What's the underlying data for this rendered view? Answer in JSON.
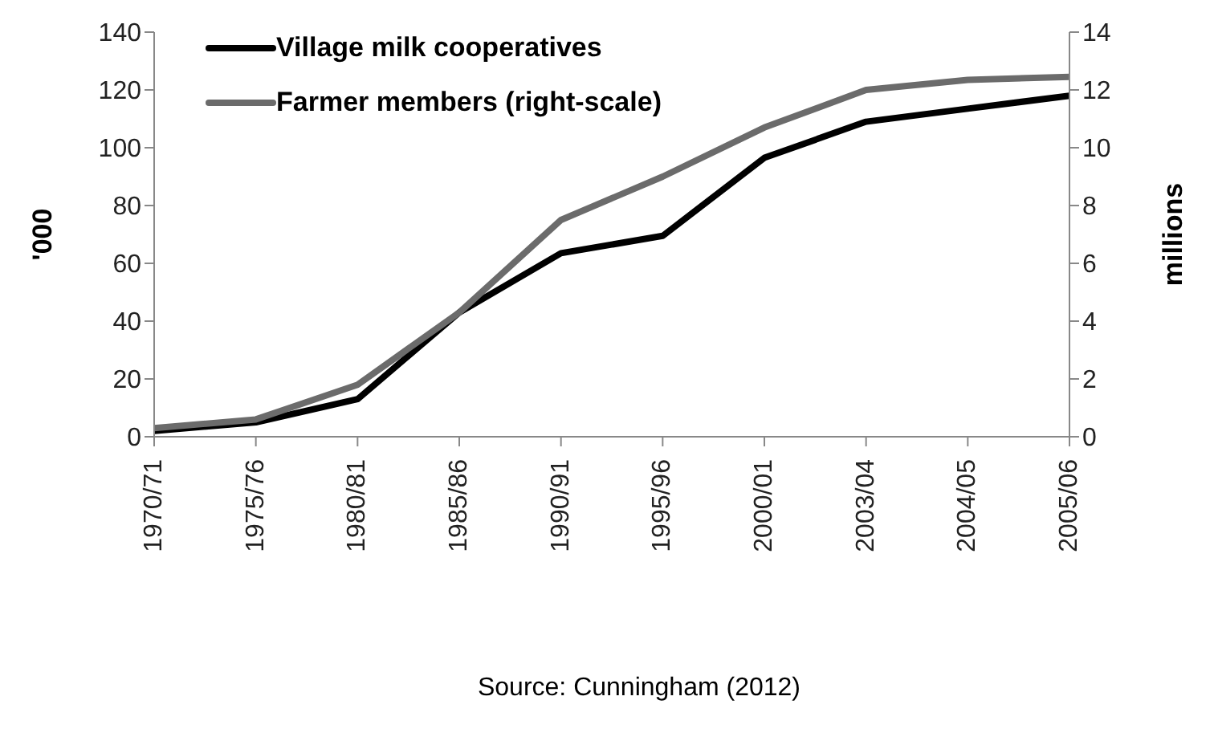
{
  "chart_data": {
    "type": "line",
    "categories": [
      "1970/71",
      "1975/76",
      "1980/81",
      "1985/86",
      "1990/91",
      "1995/96",
      "2000/01",
      "2003/04",
      "2004/05",
      "2005/06"
    ],
    "ylabel": "'000",
    "y2label": "millions",
    "series": [
      {
        "name": "Village milk cooperatives",
        "color": "#000000",
        "values": [
          2,
          5,
          13,
          43,
          63.5,
          69.5,
          96.5,
          109,
          113.5,
          118
        ]
      },
      {
        "name": "Farmer members (right-scale)",
        "color": "#6b6b6b",
        "axis": "y2",
        "values": [
          0.3,
          0.6,
          1.8,
          4.3,
          7.5,
          9.0,
          10.7,
          12.0,
          12.35,
          12.45
        ]
      }
    ],
    "ylim": [
      0,
      140
    ],
    "yticks": [
      0,
      20,
      40,
      60,
      80,
      100,
      120,
      140
    ],
    "y2lim": [
      0,
      14
    ],
    "y2ticks": [
      0,
      2,
      4,
      6,
      8,
      10,
      12,
      14
    ],
    "grid": false,
    "legend": "top left",
    "marker": "none",
    "line_style": "solid",
    "annotations": [
      "Source: Cunningham (2012)"
    ]
  }
}
